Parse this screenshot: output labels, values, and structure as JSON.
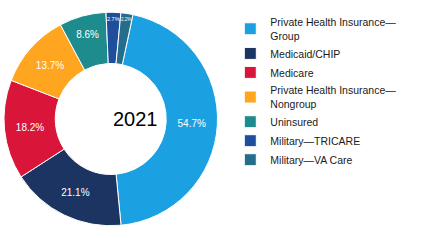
{
  "chart_data": {
    "type": "pie",
    "title": "2021",
    "categories": [
      "Private Health Insurance—Group",
      "Medicaid/CHIP",
      "Medicare",
      "Private Health Insurance—Nongroup",
      "Uninsured",
      "Military—TRICARE",
      "Military—VA Care"
    ],
    "values": [
      54.7,
      21.1,
      18.2,
      13.7,
      8.6,
      2.7,
      2.2
    ],
    "value_labels": [
      "54.7%",
      "21.1%",
      "18.2%",
      "13.7%",
      "8.6%",
      "2.7%",
      "2.2%"
    ],
    "colors": [
      "#1ba1e2",
      "#1c3461",
      "#d9163a",
      "#ffa51f",
      "#1e8c8c",
      "#1f4e9c",
      "#246e8c"
    ],
    "data_labels": true,
    "legend": "right"
  }
}
